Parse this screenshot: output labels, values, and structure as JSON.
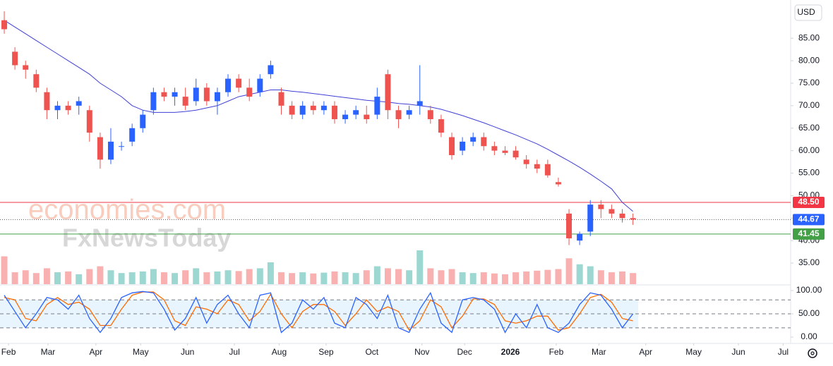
{
  "chart_data": {
    "type": "candlestick",
    "currency": "USD",
    "watermarks": [
      "economies.com",
      "FxNewsToday"
    ],
    "up_color": "#2962ff",
    "down_color": "#ef5350",
    "ma_color": "#3f3fd6",
    "xlim": [
      -0.4,
      73.8
    ],
    "xticks": [
      {
        "value": 0.4,
        "label": "Feb"
      },
      {
        "value": 4.1,
        "label": "Mar"
      },
      {
        "value": 8.6,
        "label": "Apr"
      },
      {
        "value": 12.8,
        "label": "May"
      },
      {
        "value": 17.2,
        "label": "Jun"
      },
      {
        "value": 21.6,
        "label": "Jul"
      },
      {
        "value": 25.8,
        "label": "Aug"
      },
      {
        "value": 30.2,
        "label": "Sep"
      },
      {
        "value": 34.5,
        "label": "Oct"
      },
      {
        "value": 39.2,
        "label": "Nov"
      },
      {
        "value": 43.2,
        "label": "Dec"
      },
      {
        "value": 47.5,
        "label": "2026"
      },
      {
        "value": 51.8,
        "label": "Feb"
      },
      {
        "value": 55.8,
        "label": "Mar"
      },
      {
        "value": 60.2,
        "label": "Apr"
      },
      {
        "value": 64.7,
        "label": "May"
      },
      {
        "value": 68.9,
        "label": "Jun"
      },
      {
        "value": 73.1,
        "label": "Jul"
      }
    ],
    "ylim": [
      30.3,
      93.5
    ],
    "yticks": [
      {
        "value": 85,
        "label": "85.00"
      },
      {
        "value": 80,
        "label": "80.00"
      },
      {
        "value": 75,
        "label": "75.00"
      },
      {
        "value": 70,
        "label": "70.00"
      },
      {
        "value": 65,
        "label": "65.00"
      },
      {
        "value": 60,
        "label": "60.00"
      },
      {
        "value": 55,
        "label": "55.00"
      },
      {
        "value": 50,
        "label": "50.00"
      },
      {
        "value": 45,
        "label": "45.00"
      },
      {
        "value": 40,
        "label": "40.00"
      },
      {
        "value": 35,
        "label": "35.00"
      }
    ],
    "open": [
      89,
      82,
      79,
      77,
      73,
      69,
      70,
      70,
      69,
      63,
      58,
      61,
      62,
      65,
      69,
      73,
      72,
      72,
      71,
      74,
      71,
      73,
      76,
      74,
      73,
      77,
      73,
      70,
      68,
      70,
      69,
      70,
      67,
      68,
      68,
      68,
      77,
      69,
      68,
      70,
      69,
      67,
      63,
      60,
      62,
      63,
      61,
      60,
      60,
      58,
      57,
      57,
      53,
      46,
      40,
      42,
      48,
      47,
      46,
      45
    ],
    "high": [
      91,
      83,
      80,
      78,
      74,
      71,
      71,
      72,
      70,
      64,
      65,
      62,
      66,
      69,
      74,
      74,
      74,
      74,
      76,
      75,
      74,
      77,
      77,
      76,
      77,
      80,
      74,
      71,
      71,
      71,
      71,
      71,
      69,
      70,
      70,
      74,
      78,
      70,
      70,
      79,
      70,
      68,
      64,
      63,
      64,
      64,
      62,
      61,
      61,
      59,
      58,
      58,
      54,
      47,
      42,
      49,
      49,
      48,
      47,
      46
    ],
    "low": [
      86,
      78,
      76,
      73,
      67,
      67,
      68,
      68,
      62,
      56,
      57,
      60,
      61,
      64,
      68,
      71,
      70,
      69,
      70,
      70,
      68,
      72,
      73,
      71,
      72,
      76,
      68,
      67,
      67,
      68,
      68,
      66,
      66,
      67,
      66,
      67,
      67,
      65,
      67,
      68,
      66,
      63,
      58,
      59,
      61,
      60,
      59,
      59,
      58,
      56,
      55,
      54,
      52,
      39,
      39,
      41,
      45,
      45,
      44,
      43.5
    ],
    "close": [
      87,
      79,
      78,
      74,
      69,
      70,
      69,
      71,
      64,
      58,
      62,
      61,
      65,
      68,
      73,
      72,
      73,
      70,
      74,
      71,
      73,
      76,
      74,
      72,
      76,
      79,
      70,
      68,
      70,
      69,
      70,
      67,
      68,
      69,
      67,
      72,
      69,
      67,
      69,
      71,
      67,
      64,
      59,
      62,
      63,
      61,
      60,
      59.5,
      58.5,
      57,
      56,
      54.5,
      52.5,
      40.5,
      41.5,
      48,
      47,
      46,
      45,
      44.67
    ],
    "volume": [
      70,
      30,
      35,
      28,
      40,
      30,
      32,
      25,
      38,
      45,
      35,
      28,
      30,
      32,
      38,
      30,
      28,
      35,
      40,
      30,
      32,
      35,
      33,
      38,
      40,
      55,
      30,
      28,
      30,
      27,
      29,
      32,
      30,
      28,
      35,
      45,
      40,
      38,
      35,
      85,
      40,
      35,
      38,
      30,
      28,
      30,
      27,
      25,
      30,
      32,
      34,
      36,
      38,
      65,
      50,
      45,
      35,
      30,
      32,
      28
    ],
    "ma": [
      89,
      87.5,
      86,
      84.5,
      83,
      81.5,
      80,
      78.5,
      77,
      75,
      73.5,
      72,
      70,
      69,
      68.5,
      68.5,
      68.5,
      68.7,
      69,
      69.5,
      70,
      71,
      72,
      72.5,
      73,
      73.5,
      73.5,
      73.2,
      73,
      72.7,
      72.4,
      72.1,
      71.8,
      71.5,
      71.2,
      71,
      70.8,
      70.5,
      70.3,
      70,
      69.7,
      69.2,
      68.5,
      67.8,
      67,
      66.2,
      65.3,
      64.4,
      63.5,
      62.5,
      61.5,
      60.3,
      59,
      57.7,
      56.3,
      54.8,
      53.2,
      51.5,
      48.5,
      46.5
    ],
    "levels": [
      {
        "value": 48.5,
        "label": "48.50",
        "color": "#f23645"
      },
      {
        "value": 41.45,
        "label": "41.45",
        "color": "#43a047"
      }
    ],
    "last_price": {
      "value": 44.67,
      "label": "44.67",
      "color": "#2962ff"
    },
    "oscillator": {
      "ylim": [
        -13.6,
        110.6
      ],
      "yticks": [
        {
          "value": 100,
          "label": "100.00"
        },
        {
          "value": 50,
          "label": "50.00"
        },
        {
          "value": 0,
          "label": "0.00"
        }
      ],
      "bands": [
        80,
        50,
        20
      ],
      "k_color": "#2962ff",
      "d_color": "#ff6d00",
      "k": [
        90,
        55,
        20,
        50,
        85,
        80,
        60,
        90,
        40,
        10,
        40,
        85,
        95,
        98,
        95,
        60,
        15,
        40,
        85,
        30,
        70,
        90,
        50,
        20,
        90,
        95,
        10,
        30,
        80,
        60,
        85,
        30,
        20,
        85,
        70,
        40,
        90,
        20,
        10,
        60,
        95,
        30,
        10,
        80,
        85,
        80,
        60,
        10,
        50,
        20,
        70,
        20,
        10,
        30,
        70,
        95,
        90,
        60,
        20,
        50
      ],
      "d": [
        85,
        80,
        40,
        35,
        70,
        85,
        70,
        75,
        60,
        25,
        25,
        60,
        90,
        97,
        97,
        80,
        35,
        25,
        65,
        60,
        50,
        80,
        70,
        35,
        55,
        92,
        50,
        20,
        55,
        70,
        70,
        55,
        25,
        50,
        80,
        55,
        65,
        55,
        15,
        35,
        80,
        65,
        20,
        45,
        82,
        82,
        70,
        35,
        30,
        35,
        45,
        45,
        15,
        20,
        50,
        85,
        92,
        75,
        40,
        35
      ]
    }
  }
}
